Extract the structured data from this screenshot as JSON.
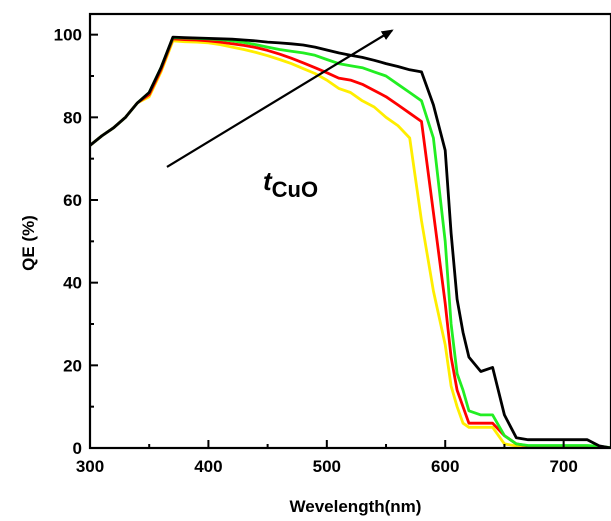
{
  "chart_data": {
    "type": "line",
    "xlabel": "Wevelength(nm)",
    "ylabel": "QE (%)",
    "xlim": [
      300,
      740
    ],
    "ylim": [
      0,
      105
    ],
    "xticks": [
      300,
      400,
      500,
      600,
      700
    ],
    "yticks": [
      0,
      20,
      40,
      60,
      80,
      100
    ],
    "xtick_labels": [
      "300",
      "400",
      "500",
      "600",
      "700"
    ],
    "ytick_labels": [
      "0",
      "20",
      "40",
      "60",
      "80",
      "100"
    ],
    "grid": false,
    "annotation": {
      "text_italic": "t",
      "text_sub": "CuO",
      "arrow": {
        "from": [
          365,
          68
        ],
        "to": [
          555,
          101
        ]
      }
    },
    "series": [
      {
        "color": "#ffee00",
        "x": [
          300,
          310,
          320,
          330,
          340,
          350,
          360,
          370,
          380,
          390,
          400,
          410,
          420,
          430,
          440,
          450,
          460,
          470,
          480,
          490,
          500,
          510,
          520,
          530,
          540,
          550,
          560,
          570,
          580,
          590,
          600,
          605,
          610,
          615,
          620,
          630,
          640,
          650,
          660,
          670,
          680,
          690,
          700,
          710,
          720,
          730,
          740
        ],
        "y": [
          73.2,
          75.5,
          77.5,
          80,
          83.5,
          85,
          91,
          98.5,
          98.3,
          98.2,
          98,
          97.6,
          97,
          96.4,
          95.7,
          94.9,
          94,
          93,
          91.8,
          90.6,
          89,
          87,
          86,
          84,
          82.5,
          80,
          78,
          75,
          55,
          38,
          25,
          15,
          10,
          6,
          5,
          5,
          5,
          1,
          0.5,
          0.3,
          0.3,
          0.3,
          0.3,
          0.3,
          0.3,
          0.2,
          0.1
        ]
      },
      {
        "color": "#ff0000",
        "x": [
          300,
          310,
          320,
          330,
          340,
          350,
          360,
          370,
          380,
          390,
          400,
          410,
          420,
          430,
          440,
          450,
          460,
          470,
          480,
          490,
          500,
          510,
          520,
          530,
          540,
          550,
          560,
          570,
          580,
          590,
          600,
          605,
          610,
          615,
          620,
          630,
          640,
          650,
          660,
          670,
          680,
          690,
          700,
          710,
          720,
          730,
          740
        ],
        "y": [
          73.2,
          75.5,
          77.5,
          80,
          83.5,
          85.5,
          91.5,
          99,
          98.8,
          98.7,
          98.5,
          98.2,
          97.8,
          97.4,
          96.9,
          96.2,
          95.3,
          94.3,
          93.2,
          92,
          90.8,
          89.5,
          89,
          88,
          86.5,
          85,
          83,
          81,
          79,
          57,
          35,
          22,
          14,
          10,
          6,
          6,
          6,
          3,
          1,
          0.5,
          0.5,
          0.5,
          0.5,
          0.5,
          0.5,
          0.3,
          0.1
        ]
      },
      {
        "color": "#22ee22",
        "x": [
          300,
          310,
          320,
          330,
          340,
          350,
          360,
          370,
          380,
          390,
          400,
          410,
          420,
          430,
          440,
          450,
          460,
          470,
          480,
          490,
          500,
          510,
          520,
          530,
          540,
          550,
          560,
          570,
          580,
          590,
          600,
          605,
          610,
          615,
          620,
          630,
          640,
          650,
          660,
          670,
          680,
          690,
          700,
          710,
          720,
          730,
          740
        ],
        "y": [
          73.2,
          75.5,
          77.5,
          80,
          83.5,
          86,
          92,
          99.3,
          99.2,
          99.1,
          99,
          98.8,
          98.5,
          98.1,
          97.6,
          97,
          96.4,
          96,
          95.6,
          95,
          94,
          93,
          92.5,
          92,
          91,
          90,
          88,
          86,
          84,
          75,
          50,
          30,
          18,
          14,
          9,
          8,
          8,
          3,
          1,
          0.6,
          0.6,
          0.6,
          0.6,
          0.6,
          0.6,
          0.4,
          0.1
        ]
      },
      {
        "color": "#000000",
        "x": [
          300,
          310,
          320,
          330,
          340,
          350,
          360,
          370,
          380,
          390,
          400,
          410,
          420,
          430,
          440,
          450,
          460,
          470,
          480,
          490,
          500,
          510,
          520,
          530,
          540,
          550,
          560,
          570,
          580,
          590,
          600,
          605,
          610,
          615,
          620,
          630,
          640,
          650,
          660,
          670,
          680,
          690,
          700,
          710,
          720,
          730,
          740
        ],
        "y": [
          73.2,
          75.5,
          77.5,
          80,
          83.5,
          86,
          92,
          99.4,
          99.3,
          99.2,
          99.1,
          99,
          98.9,
          98.7,
          98.5,
          98.2,
          98,
          97.8,
          97.5,
          97,
          96.3,
          95.6,
          95,
          94.5,
          93.8,
          93,
          92.3,
          91.5,
          91,
          83,
          72,
          52,
          36,
          28,
          22,
          18.5,
          19.5,
          8,
          2.5,
          2,
          2,
          2,
          2,
          2,
          2,
          0.5,
          0
        ]
      }
    ]
  }
}
